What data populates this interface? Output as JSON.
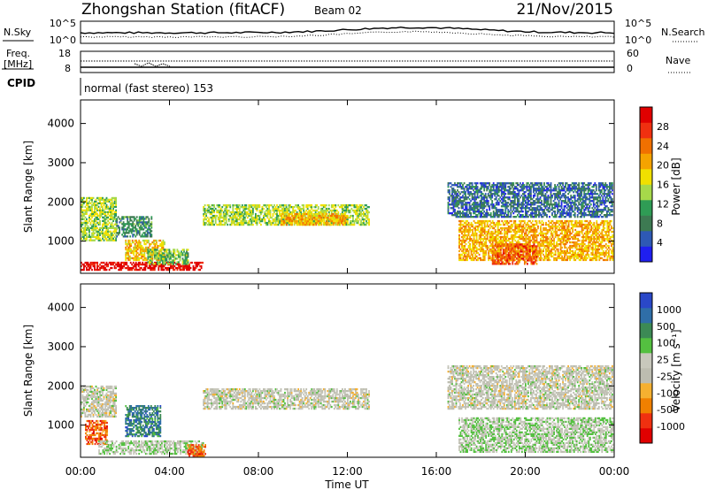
{
  "header": {
    "station": "Zhongshan Station (fitACF)",
    "beam": "Beam 02",
    "date": "21/Nov/2015"
  },
  "top_panels": {
    "nsky_label": "N.Sky",
    "nsearch_label": "N.Search",
    "noise_ticks": [
      "10^5",
      "10^0"
    ],
    "freq_label": "Freq.",
    "freq_unit": "[MHz]",
    "freq_ticks": [
      "18",
      "8"
    ],
    "nave_label": "Nave",
    "nave_ticks": [
      "60",
      "0"
    ],
    "cpid_label": "CPID",
    "cpid_text": "normal (fast stereo) 153"
  },
  "colors": {
    "power_scale": [
      "#1f1ff0",
      "#2e59b5",
      "#3d7a52",
      "#2f9c55",
      "#a6d94a",
      "#f0e000",
      "#f5a300",
      "#f07000",
      "#f03010",
      "#e00000"
    ],
    "velocity_scale": [
      "#e00000",
      "#f03010",
      "#f08000",
      "#f5b030",
      "#bdbdb0",
      "#c8c8bc",
      "#54c040",
      "#3c8a55",
      "#2f6ea8",
      "#2a48c8"
    ]
  },
  "chart_data": [
    {
      "type": "heatmap",
      "name": "power",
      "ylabel": "Slant Range [km]",
      "xlabel": "Time UT",
      "x_ticks": [
        "00:00",
        "04:00",
        "08:00",
        "12:00",
        "16:00",
        "20:00",
        "00:00"
      ],
      "y_ticks": [
        1000,
        2000,
        3000,
        4000
      ],
      "ylim": [
        180,
        4600
      ],
      "xlim": [
        0,
        24
      ],
      "colorbar": {
        "label": "Power [dB]",
        "ticks": [
          "28",
          "24",
          "20",
          "16",
          "12",
          "8",
          "4"
        ],
        "range": [
          0,
          30
        ]
      },
      "regions": [
        {
          "t0": 0.0,
          "t1": 5.5,
          "r0": 250,
          "r1": 450,
          "value": 29
        },
        {
          "t0": 0.0,
          "t1": 1.6,
          "r0": 1000,
          "r1": 2100,
          "value": 14
        },
        {
          "t0": 1.6,
          "t1": 3.2,
          "r0": 1100,
          "r1": 1600,
          "value": 9
        },
        {
          "t0": 2.0,
          "t1": 3.8,
          "r0": 500,
          "r1": 1000,
          "value": 18
        },
        {
          "t0": 3.0,
          "t1": 4.8,
          "r0": 400,
          "r1": 800,
          "value": 12
        },
        {
          "t0": 5.5,
          "t1": 13.0,
          "r0": 1400,
          "r1": 1900,
          "value": 14
        },
        {
          "t0": 9.0,
          "t1": 12.0,
          "r0": 1400,
          "r1": 1700,
          "value": 19
        },
        {
          "t0": 16.5,
          "t1": 23.9,
          "r0": 1600,
          "r1": 2500,
          "value": 6
        },
        {
          "t0": 17.0,
          "t1": 23.9,
          "r0": 500,
          "r1": 1500,
          "value": 19
        },
        {
          "t0": 18.5,
          "t1": 20.5,
          "r0": 400,
          "r1": 900,
          "value": 24
        }
      ]
    },
    {
      "type": "heatmap",
      "name": "velocity",
      "ylabel": "Slant Range [km]",
      "xlabel": "Time UT",
      "x_ticks": [
        "00:00",
        "04:00",
        "08:00",
        "12:00",
        "16:00",
        "20:00",
        "00:00"
      ],
      "y_ticks": [
        1000,
        2000,
        3000,
        4000
      ],
      "ylim": [
        180,
        4600
      ],
      "xlim": [
        0,
        24
      ],
      "colorbar": {
        "label": "Velocity [m s⁻¹]",
        "ticks": [
          "1000",
          "500",
          "100",
          "25",
          "-25",
          "-100",
          "-500",
          "-1000"
        ],
        "range": [
          -1000,
          1000
        ]
      },
      "regions": [
        {
          "t0": 0.0,
          "t1": 1.6,
          "r0": 1200,
          "r1": 2000,
          "value": 0
        },
        {
          "t0": 0.2,
          "t1": 1.2,
          "r0": 500,
          "r1": 1100,
          "value": -600
        },
        {
          "t0": 0.8,
          "t1": 5.5,
          "r0": 250,
          "r1": 600,
          "value": 150
        },
        {
          "t0": 2.0,
          "t1": 3.6,
          "r0": 700,
          "r1": 1500,
          "value": 600
        },
        {
          "t0": 4.8,
          "t1": 5.6,
          "r0": 200,
          "r1": 500,
          "value": -600
        },
        {
          "t0": 5.5,
          "t1": 13.0,
          "r0": 1400,
          "r1": 1900,
          "value": 0
        },
        {
          "t0": 16.5,
          "t1": 23.9,
          "r0": 1400,
          "r1": 2500,
          "value": 0
        },
        {
          "t0": 17.0,
          "t1": 23.9,
          "r0": 300,
          "r1": 1200,
          "value": 150
        }
      ]
    }
  ]
}
